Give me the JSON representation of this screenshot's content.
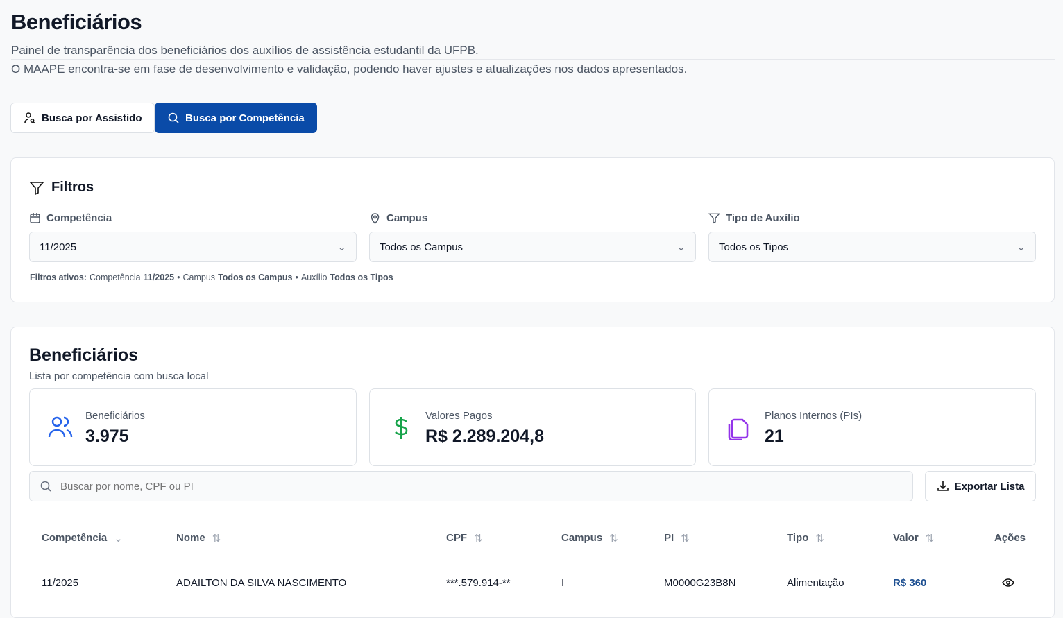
{
  "header": {
    "title": "Beneficiários",
    "subtitle": "Painel de transparência dos beneficiários dos auxílios de assistência estudantil da UFPB.",
    "notice": "O MAAPE encontra-se em fase de desenvolvimento e validação, podendo haver ajustes e atualizações nos dados apresentados."
  },
  "tabs": [
    {
      "label": "Busca por Assistido",
      "icon": "user-search-icon",
      "active": false
    },
    {
      "label": "Busca por Competência",
      "icon": "search-icon",
      "active": true
    }
  ],
  "filters": {
    "title": "Filtros",
    "competencia": {
      "label": "Competência",
      "value": "11/2025"
    },
    "campus": {
      "label": "Campus",
      "value": "Todos os Campus"
    },
    "tipo": {
      "label": "Tipo de Auxílio",
      "value": "Todos os Tipos"
    },
    "active": {
      "prefix": "Filtros ativos:",
      "c_label": "Competência",
      "c_val": "11/2025",
      "sep1": "•",
      "ca_label": "Campus",
      "ca_val": "Todos os Campus",
      "sep2": "•",
      "a_label": "Auxílio",
      "a_val": "Todos os Tipos"
    }
  },
  "list": {
    "title": "Beneficiários",
    "subtitle": "Lista por competência com busca local",
    "stats": [
      {
        "label": "Beneficiários",
        "value": "3.975",
        "color": "#2563eb"
      },
      {
        "label": "Valores Pagos",
        "value": "R$ 2.289.204,8",
        "color": "#16a34a"
      },
      {
        "label": "Planos Internos (PIs)",
        "value": "21",
        "color": "#9333ea"
      }
    ],
    "search_placeholder": "Buscar por nome, CPF ou PI",
    "export_label": "Exportar Lista",
    "columns": [
      "Competência",
      "Nome",
      "CPF",
      "Campus",
      "PI",
      "Tipo",
      "Valor",
      "Ações"
    ],
    "rows": [
      [
        "11/2025",
        "ADAILTON DA SILVA NASCIMENTO",
        "***.579.914-**",
        "I",
        "M0000G23B8N",
        "Alimentação",
        "R$ 360"
      ]
    ]
  },
  "colors": {
    "primary": "#0a4ba8",
    "value_link": "#1d4f91"
  }
}
